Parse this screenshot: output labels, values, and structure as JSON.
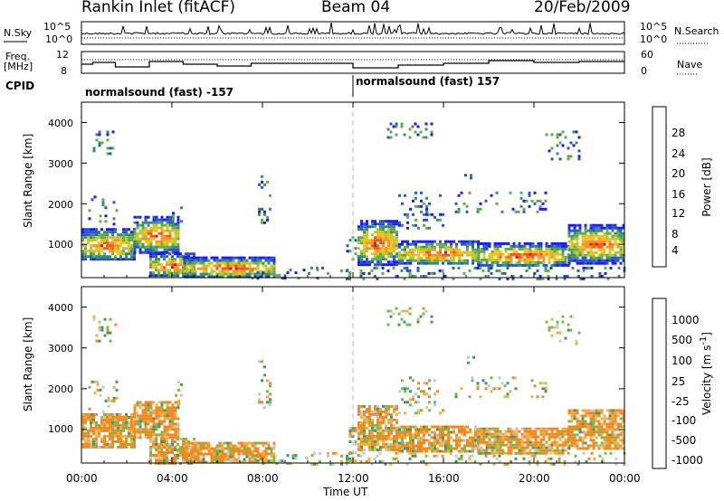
{
  "header": {
    "station": "Rankin Inlet (fitACF)",
    "beam": "Beam 04",
    "date": "20/Feb/2009"
  },
  "top_panels": {
    "nsky_label": "N.Sky",
    "nsky_ticks": [
      "10^5",
      "10^0"
    ],
    "nsearch_label": "N.Search",
    "nsearch_ticks": [
      "10^5",
      "10^0"
    ],
    "freq_label_1": "Freq.",
    "freq_label_2": "[MHz]",
    "freq_ticks": [
      "12",
      "8"
    ],
    "nave_label": "Nave",
    "nave_ticks": [
      "60",
      "0"
    ],
    "cpid_label": "CPID",
    "cpid_segments": [
      "normalsound (fast) -157",
      "normalsound (fast) 157"
    ]
  },
  "chart_data": [
    {
      "type": "heatmap",
      "title": "",
      "xlabel": "",
      "ylabel": "Slant Range [km]",
      "ylim": [
        180,
        4500
      ],
      "yticks": [
        "1000",
        "2000",
        "3000",
        "4000"
      ],
      "xlim": [
        0,
        24
      ],
      "xtick_hours": [
        0,
        4,
        8,
        12,
        16,
        20,
        24
      ],
      "colorbar": {
        "label": "Power [dB]",
        "ticks": [
          "4",
          "8",
          "12",
          "16",
          "20",
          "24",
          "28"
        ],
        "colors": [
          "#1a1aff",
          "#2855c8",
          "#3a8a78",
          "#5fae4a",
          "#b9c92a",
          "#f2c21c",
          "#f59420",
          "#f05a14",
          "#e01010"
        ]
      }
    },
    {
      "type": "heatmap",
      "title": "",
      "xlabel": "Time UT",
      "ylabel": "Slant Range [km]",
      "ylim": [
        180,
        4500
      ],
      "yticks": [
        "1000",
        "2000",
        "3000",
        "4000"
      ],
      "xlim": [
        0,
        24
      ],
      "xtick_labels": [
        "00:00",
        "04:00",
        "08:00",
        "12:00",
        "16:00",
        "20:00",
        "00:00"
      ],
      "colorbar": {
        "label": "Velocity [m s^-1]",
        "ticks": [
          "1000",
          "500",
          "100",
          "25",
          "-25",
          "-100",
          "-500",
          "-1000"
        ],
        "colors": [
          "#1b3fb0",
          "#2f73b5",
          "#3e9a6a",
          "#6cc04a",
          "#c8c8c0",
          "#f0b040",
          "#f08a20",
          "#f05a14",
          "#e01010"
        ]
      }
    }
  ]
}
